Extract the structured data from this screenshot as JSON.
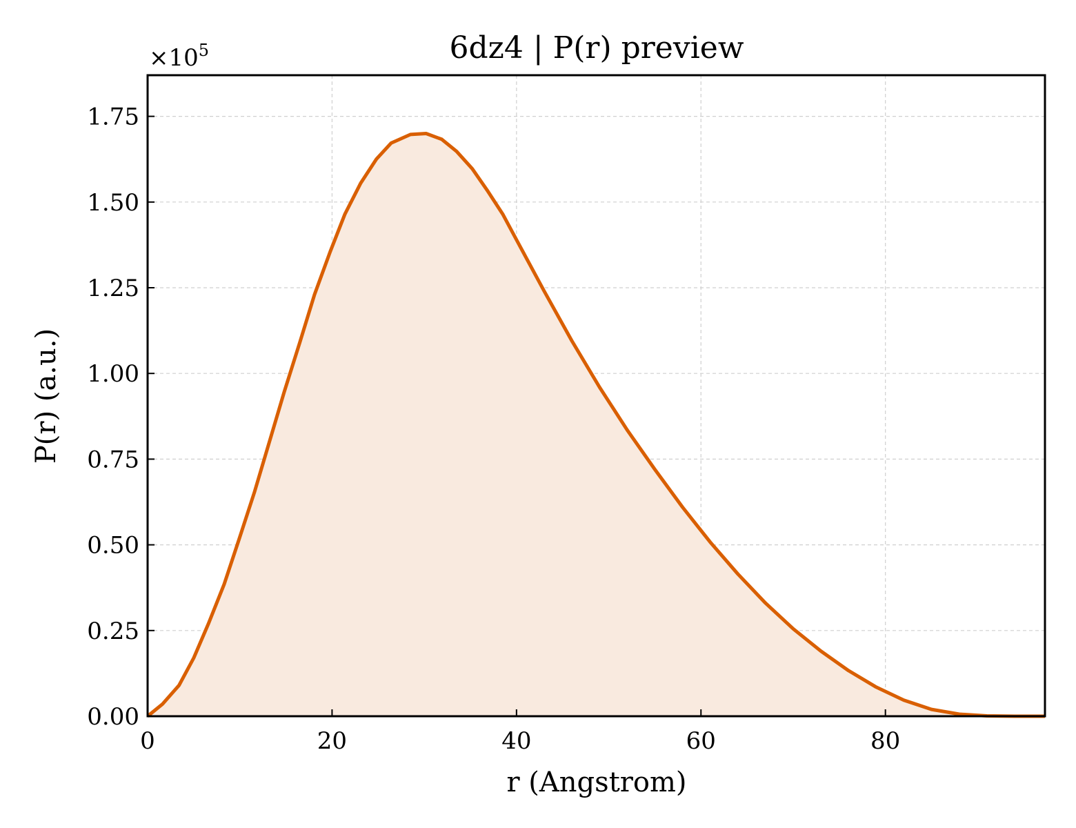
{
  "chart_data": {
    "type": "area",
    "title": "6dz4 | P(r) preview",
    "xlabel": "r (Angstrom)",
    "ylabel": "P(r) (a.u.)",
    "y_offset_label": "×10",
    "y_offset_exponent": "5",
    "xlim": [
      0,
      97.3
    ],
    "ylim": [
      0,
      1.87
    ],
    "y_scale": 100000,
    "x_ticks": [
      0,
      20,
      40,
      60,
      80
    ],
    "x_tick_labels": [
      "0",
      "20",
      "40",
      "60",
      "80"
    ],
    "y_ticks": [
      0,
      0.25,
      0.5,
      0.75,
      1.0,
      1.25,
      1.5,
      1.75
    ],
    "y_tick_labels": [
      "0.00",
      "0.25",
      "0.50",
      "0.75",
      "1.00",
      "1.25",
      "1.50",
      "1.75"
    ],
    "grid": true,
    "colors": {
      "line": "#d95f02",
      "fill": "#f9eadf"
    },
    "x": [
      0,
      1.6,
      3.4,
      5.0,
      6.6,
      8.3,
      9.9,
      11.6,
      13.2,
      14.8,
      16.5,
      18.1,
      19.8,
      21.4,
      23.1,
      24.8,
      26.4,
      28.5,
      30.2,
      31.9,
      33.5,
      35.2,
      36.8,
      38.5,
      40.0,
      43.0,
      46.0,
      49.0,
      52.0,
      55.0,
      58.0,
      61.0,
      64.0,
      67.0,
      70.0,
      73.0,
      76.0,
      79.0,
      82.0,
      85.0,
      88.0,
      91.0,
      94.0,
      97.3
    ],
    "y": [
      0.0,
      0.035,
      0.09,
      0.17,
      0.27,
      0.385,
      0.515,
      0.655,
      0.8,
      0.945,
      1.09,
      1.23,
      1.355,
      1.465,
      1.555,
      1.625,
      1.672,
      1.697,
      1.7,
      1.683,
      1.648,
      1.597,
      1.535,
      1.465,
      1.39,
      1.24,
      1.095,
      0.96,
      0.835,
      0.72,
      0.61,
      0.508,
      0.415,
      0.33,
      0.255,
      0.19,
      0.133,
      0.085,
      0.047,
      0.02,
      0.006,
      0.001,
      0.0,
      0.0
    ]
  }
}
